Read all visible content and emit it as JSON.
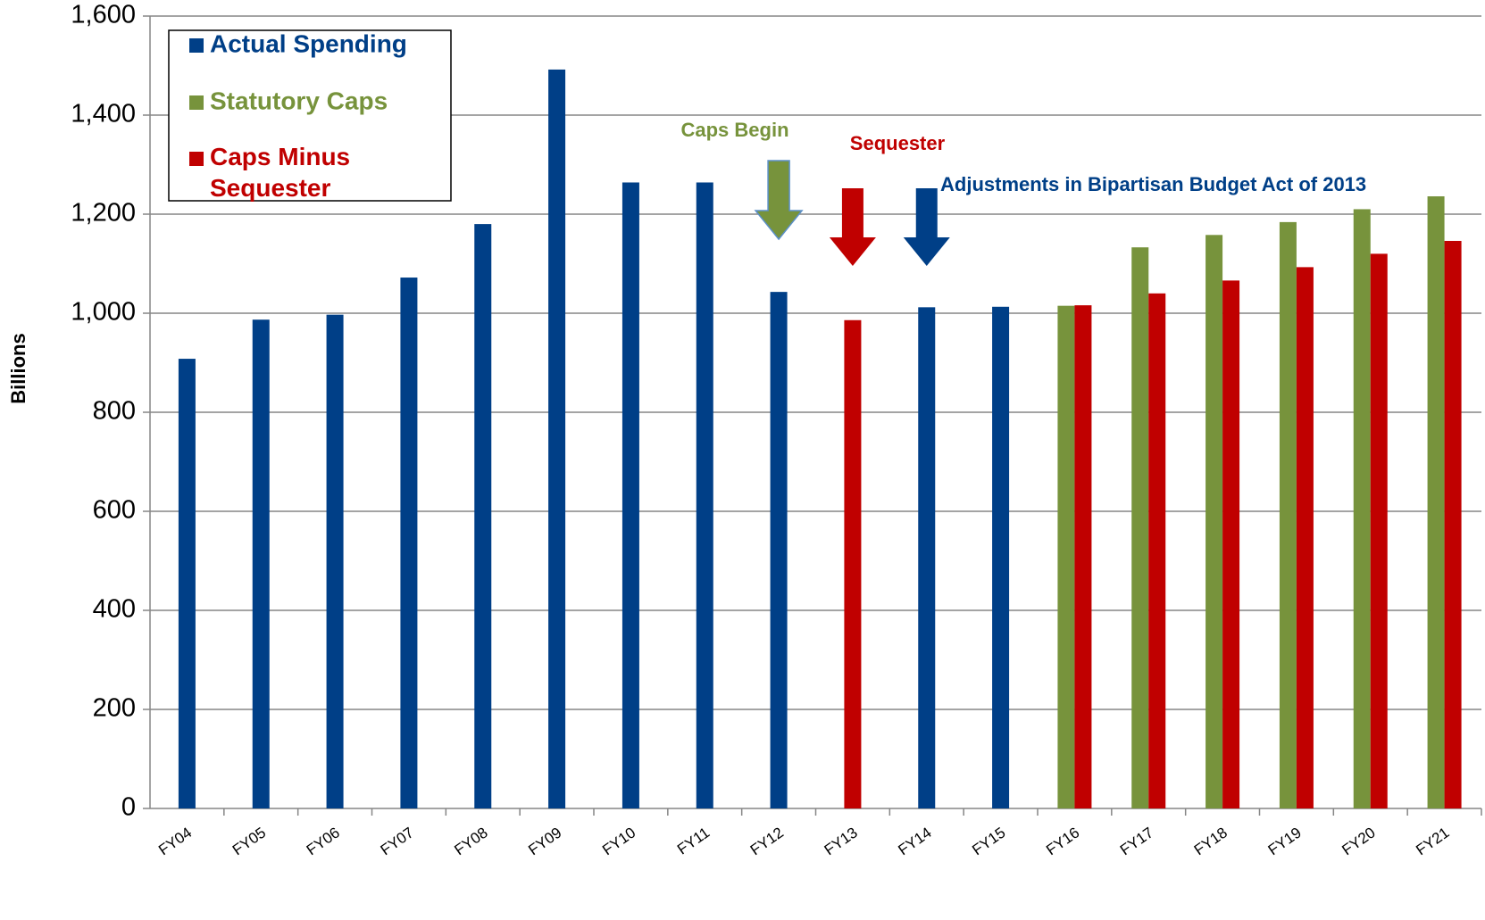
{
  "chart_data": {
    "type": "bar",
    "y_label": "Billions",
    "categories": [
      "FY04",
      "FY05",
      "FY06",
      "FY07",
      "FY08",
      "FY09",
      "FY10",
      "FY11",
      "FY12",
      "FY13",
      "FY14",
      "FY15",
      "FY16",
      "FY17",
      "FY18",
      "FY19",
      "FY20",
      "FY21"
    ],
    "series": [
      {
        "name": "Actual Spending",
        "color": "#003f87",
        "values": [
          908,
          987,
          997,
          1072,
          1180,
          1492,
          1264,
          1264,
          1043,
          null,
          1012,
          1013,
          null,
          null,
          null,
          null,
          null,
          null
        ]
      },
      {
        "name": "Statutory Caps",
        "color": "#77933c",
        "values": [
          null,
          null,
          null,
          null,
          null,
          null,
          null,
          null,
          null,
          null,
          null,
          null,
          1015,
          1133,
          1158,
          1184,
          1210,
          1236
        ]
      },
      {
        "name": "Caps Minus Sequester",
        "color": "#c00000",
        "values": [
          null,
          null,
          null,
          null,
          null,
          null,
          null,
          null,
          null,
          986,
          null,
          null,
          1016,
          1040,
          1066,
          1093,
          1120,
          1146
        ]
      }
    ],
    "ylim": [
      0,
      1600
    ],
    "yticks": [
      0,
      200,
      400,
      600,
      800,
      {
        "value": 1000,
        "label": "1,000"
      },
      {
        "value": 1200,
        "label": "1,200"
      },
      {
        "value": 1400,
        "label": "1,400"
      },
      {
        "value": 1600,
        "label": "1,600"
      }
    ],
    "grid": true,
    "annotations": [
      {
        "text": "Caps Begin",
        "color": "#77933c"
      },
      {
        "text": "Sequester",
        "color": "#c00000"
      },
      {
        "text": "Adjustments in Bipartisan Budget Act of 2013",
        "color": "#003f87"
      }
    ]
  }
}
